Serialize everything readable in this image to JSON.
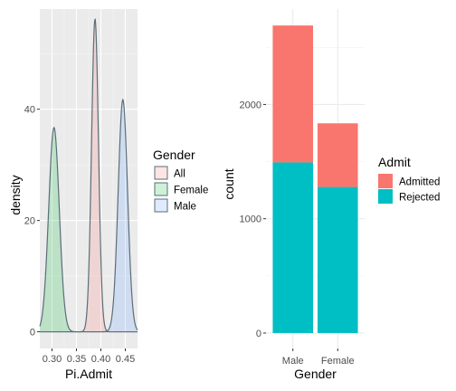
{
  "chart_data": [
    {
      "type": "density",
      "xlabel": "Pi.Admit",
      "ylabel": "density",
      "x_ticks": [
        "0.30",
        "0.35",
        "0.40",
        "0.45"
      ],
      "x_tick_values": [
        0.3,
        0.35,
        0.4,
        0.45
      ],
      "y_ticks": [
        "0",
        "20",
        "40"
      ],
      "y_tick_values": [
        0,
        20,
        40
      ],
      "xlim": [
        0.275,
        0.475
      ],
      "ylim": [
        -3,
        58
      ],
      "grid": true,
      "legend": {
        "title": "Gender",
        "placement": "right",
        "entries": [
          "All",
          "Female",
          "Male"
        ]
      },
      "series": [
        {
          "name": "All",
          "color": "#F8766D",
          "mean": 0.388,
          "sd": 0.0071,
          "peak": 56.2
        },
        {
          "name": "Female",
          "color": "#00BA38",
          "mean": 0.304,
          "sd": 0.0108,
          "peak": 36.7
        },
        {
          "name": "Male",
          "color": "#619CFF",
          "mean": 0.445,
          "sd": 0.0096,
          "peak": 41.7
        }
      ]
    },
    {
      "type": "bar",
      "stacked": true,
      "xlabel": "Gender",
      "ylabel": "count",
      "categories": [
        "Male",
        "Female"
      ],
      "y_ticks": [
        "0",
        "1000",
        "2000"
      ],
      "y_tick_values": [
        0,
        1000,
        2000
      ],
      "ylim": [
        -135,
        2835
      ],
      "grid": true,
      "legend": {
        "title": "Admit",
        "placement": "right",
        "entries": [
          "Admitted",
          "Rejected"
        ]
      },
      "series": [
        {
          "name": "Rejected",
          "color": "#00BFC4",
          "values": [
            1493,
            1278
          ]
        },
        {
          "name": "Admitted",
          "color": "#F8766D",
          "values": [
            1198,
            557
          ]
        }
      ]
    }
  ]
}
